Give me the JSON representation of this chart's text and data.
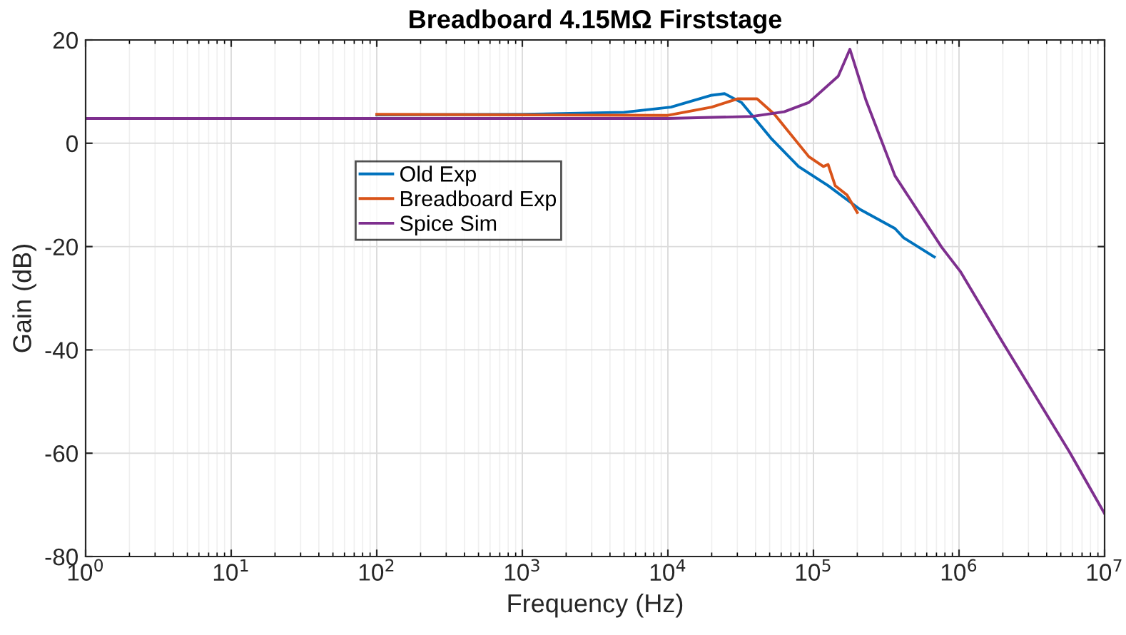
{
  "chart_data": {
    "type": "line",
    "title": "Breadboard 4.15MΩ Firststage",
    "xlabel": "Frequency (Hz)",
    "ylabel": "Gain (dB)",
    "log": "x",
    "xlim": [
      1,
      10000000
    ],
    "xticks": [
      {
        "value": 1,
        "label": "10$^{0}$"
      },
      {
        "value": 10,
        "label": "10$^{1}$"
      },
      {
        "value": 100,
        "label": "10$^{2}$"
      },
      {
        "value": 1000,
        "label": "10$^{3}$"
      },
      {
        "value": 10000,
        "label": "10$^{4}$"
      },
      {
        "value": 100000,
        "label": "10$^{5}$"
      },
      {
        "value": 1000000,
        "label": "10$^{6}$"
      },
      {
        "value": 10000000,
        "label": "10$^{7}$"
      }
    ],
    "ylim": [
      -80,
      20
    ],
    "yticks": [
      -80,
      -60,
      -40,
      -20,
      0,
      20
    ],
    "grid": true,
    "legend": "top left",
    "line_style": "solid",
    "marker": "none",
    "series": [
      {
        "name": "Old Exp",
        "color": "#0072bd",
        "x": [
          100,
          1000,
          5000,
          10500,
          20000,
          24500,
          32000,
          51000,
          79000,
          126000,
          209000,
          363000,
          417000,
          676000
        ],
        "values": [
          5.5,
          5.6,
          6.0,
          7.0,
          9.3,
          9.6,
          7.9,
          1.0,
          -4.5,
          -8.2,
          -12.8,
          -16.5,
          -18.3,
          -22.0
        ]
      },
      {
        "name": "Breadboard Exp",
        "color": "#d95319",
        "x": [
          100,
          1000,
          10000,
          20000,
          30000,
          41000,
          54000,
          93000,
          117000,
          126000,
          141000,
          170000,
          200000
        ],
        "values": [
          5.6,
          5.5,
          5.4,
          7.0,
          8.6,
          8.6,
          5.6,
          -2.6,
          -4.5,
          -4.1,
          -8.2,
          -10.0,
          -13.4
        ]
      },
      {
        "name": "Spice Sim",
        "color": "#7e2f8e",
        "x": [
          1,
          10,
          100,
          1000,
          10000,
          38000,
          63000,
          93000,
          148000,
          178000,
          229000,
          363000,
          759000,
          1020000,
          2000000,
          5750000,
          10000000
        ],
        "values": [
          4.8,
          4.8,
          4.8,
          4.8,
          4.8,
          5.2,
          6.1,
          7.9,
          13.0,
          18.2,
          8.4,
          -6.3,
          -20.1,
          -24.8,
          -38.6,
          -59.8,
          -71.7
        ]
      }
    ]
  }
}
